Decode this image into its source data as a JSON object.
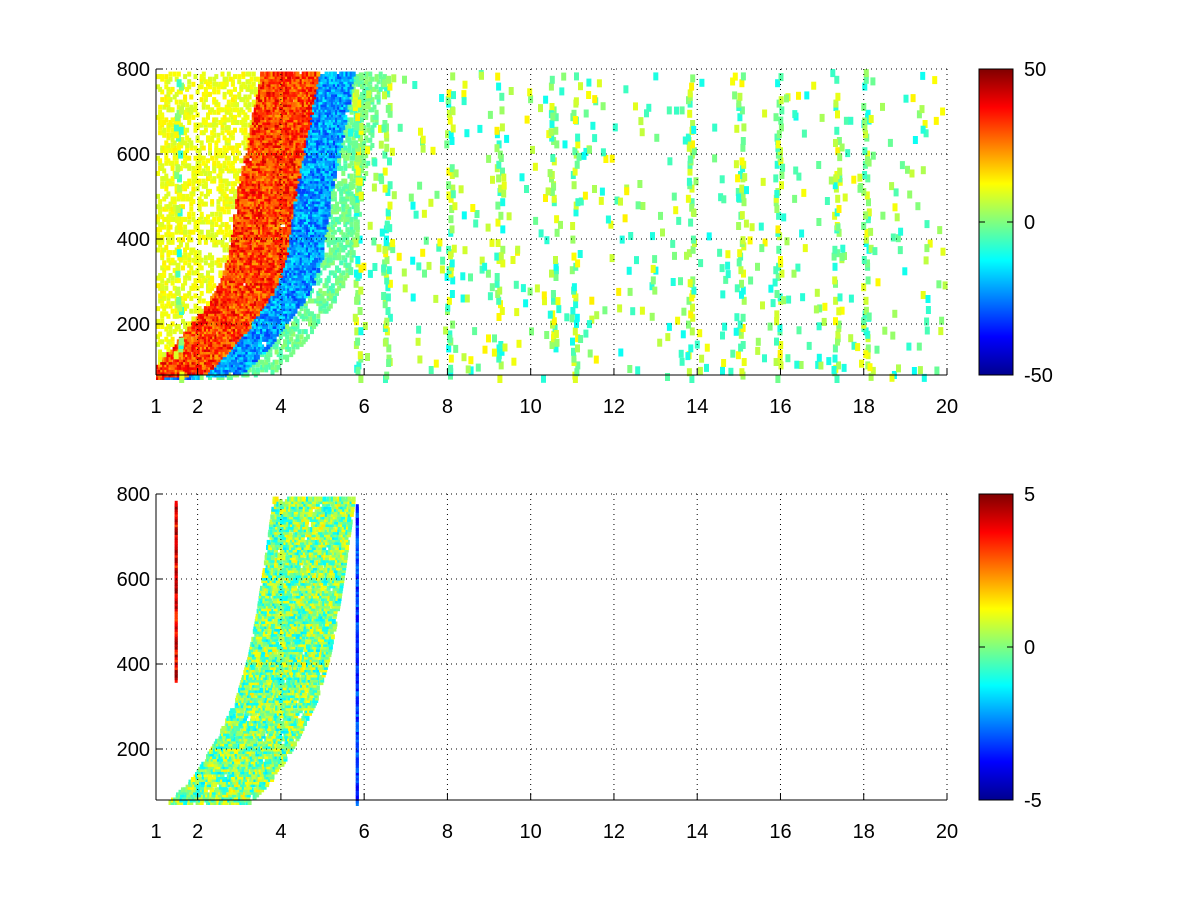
{
  "chart_data": [
    {
      "type": "heatmap",
      "title": "",
      "xlabel": "",
      "ylabel": "",
      "xlim": [
        1,
        20
      ],
      "ylim": [
        80,
        800
      ],
      "xticks": [
        1,
        2,
        4,
        6,
        8,
        10,
        12,
        14,
        16,
        18,
        20
      ],
      "yticks": [
        200,
        400,
        600,
        800
      ],
      "grid": true,
      "colormap": "jet",
      "clim": [
        -50,
        50
      ],
      "colorbar_ticks": [
        50,
        0,
        -50
      ],
      "band_polyline": [
        [
          1.0,
          80
        ],
        [
          2.0,
          90
        ],
        [
          2.5,
          140
        ],
        [
          3.0,
          200
        ],
        [
          3.4,
          250
        ],
        [
          3.7,
          300
        ],
        [
          3.9,
          360
        ],
        [
          4.0,
          420
        ],
        [
          4.1,
          500
        ],
        [
          4.3,
          600
        ],
        [
          4.5,
          700
        ],
        [
          4.7,
          800
        ]
      ],
      "band_features": [
        {
          "description": "positive ridge",
          "offset_x": -0.2,
          "value": 42
        },
        {
          "description": "negative ridge",
          "offset_x": 0.35,
          "value": -32
        }
      ],
      "vertical_streaks_x": [
        1.5,
        5.8,
        6.5,
        8.0,
        9.2,
        10.5,
        11.0,
        13.8,
        15.0,
        15.9,
        17.3,
        18.0
      ],
      "scatter_value_range": [
        -12,
        14
      ]
    },
    {
      "type": "heatmap",
      "title": "",
      "xlabel": "",
      "ylabel": "",
      "xlim": [
        1,
        20
      ],
      "ylim": [
        80,
        800
      ],
      "xticks": [
        1,
        2,
        4,
        6,
        8,
        10,
        12,
        14,
        16,
        18,
        20
      ],
      "yticks": [
        200,
        400,
        600,
        800
      ],
      "grid": true,
      "colormap": "jet",
      "clim": [
        -5,
        5
      ],
      "colorbar_ticks": [
        5,
        0,
        -5
      ],
      "band_polyline": [
        [
          1.9,
          80
        ],
        [
          2.5,
          140
        ],
        [
          3.0,
          220
        ],
        [
          3.5,
          320
        ],
        [
          3.8,
          420
        ],
        [
          4.0,
          520
        ],
        [
          4.2,
          650
        ],
        [
          4.4,
          790
        ]
      ],
      "band_value_range": [
        -1.5,
        1.5
      ],
      "vertical_lines": [
        {
          "x": 1.45,
          "y_range": [
            370,
            790
          ],
          "value": 5
        },
        {
          "x": 5.8,
          "y_range": [
            80,
            780
          ],
          "value": -4
        }
      ]
    }
  ]
}
